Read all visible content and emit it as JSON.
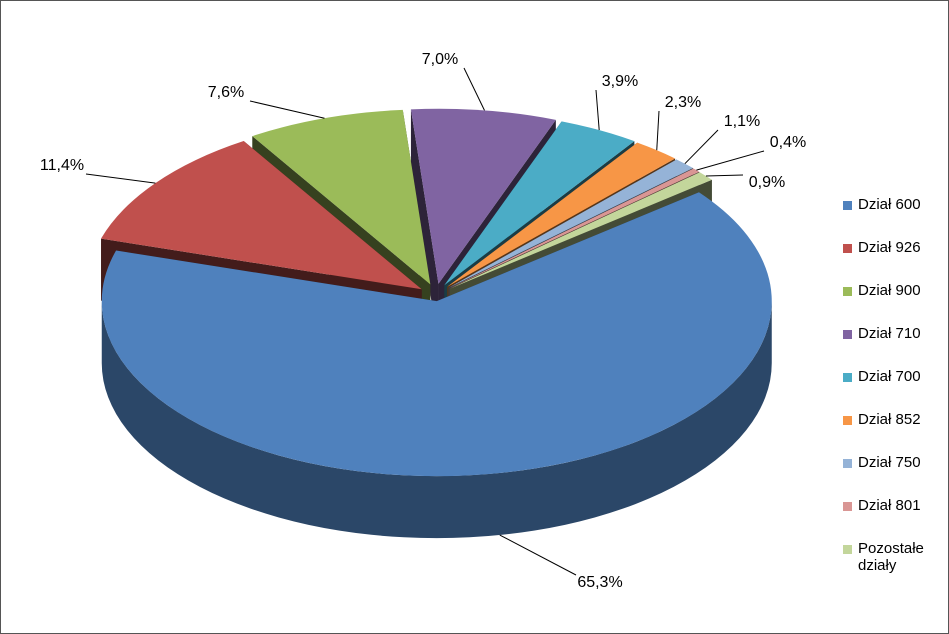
{
  "chart_data": {
    "type": "pie",
    "categories": [
      "Dział 600",
      "Dział 926",
      "Dział 900",
      "Dział 710",
      "Dział 700",
      "Dział 852",
      "Dział 750",
      "Dział 801",
      "Pozostałe działy"
    ],
    "values": [
      65.3,
      11.4,
      7.6,
      7.0,
      3.9,
      2.3,
      1.1,
      0.4,
      0.9
    ],
    "value_labels": [
      "65,3%",
      "11,4%",
      "7,6%",
      "7,0%",
      "3,9%",
      "2,3%",
      "1,1%",
      "0,4%",
      "0,9%"
    ],
    "colors": [
      "#4F81BD",
      "#C0504D",
      "#9BBB59",
      "#8064A2",
      "#4BACC6",
      "#F79646",
      "#95B3D7",
      "#D99694",
      "#C3D69B"
    ],
    "legend": "right"
  }
}
